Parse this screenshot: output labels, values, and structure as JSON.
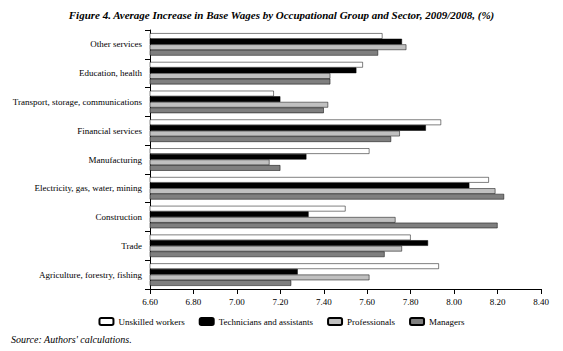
{
  "chart_data": {
    "type": "bar",
    "orientation": "horizontal",
    "title": "Figure 4. Average Increase in Base Wages by Occupational Group and Sector, 2009/2008, (%)",
    "annotations": [
      "Source: Authors' calculations."
    ],
    "categories": [
      "Agriculture, forestry, fishing",
      "Trade",
      "Construction",
      "Electricity, gas, water, mining",
      "Manufacturing",
      "Financial services",
      "Transport, storage, communications",
      "Education, health",
      "Other services"
    ],
    "series": [
      {
        "name": "Unskilled workers",
        "color": "#ffffff",
        "values": [
          7.93,
          7.8,
          7.5,
          8.16,
          7.61,
          7.94,
          7.17,
          7.58,
          7.67
        ]
      },
      {
        "name": "Technicians and assistants",
        "color": "#000000",
        "values": [
          7.28,
          7.88,
          7.33,
          8.07,
          7.32,
          7.87,
          7.2,
          7.55,
          7.76
        ]
      },
      {
        "name": "Professionals",
        "color": "#c0c0c0",
        "values": [
          7.61,
          7.76,
          7.73,
          8.19,
          7.15,
          7.75,
          7.42,
          7.43,
          7.78
        ]
      },
      {
        "name": "Managers",
        "color": "#7f7f7f",
        "values": [
          7.25,
          7.68,
          8.2,
          8.23,
          7.2,
          7.71,
          7.4,
          7.43,
          7.65
        ]
      }
    ],
    "xlim": [
      6.6,
      8.4
    ],
    "xticks": [
      {
        "value": 6.6,
        "label": "6.60"
      },
      {
        "value": 6.8,
        "label": "6.80"
      },
      {
        "value": 7.0,
        "label": "7.00"
      },
      {
        "value": 7.2,
        "label": "7.20"
      },
      {
        "value": 7.4,
        "label": "7.40"
      },
      {
        "value": 7.6,
        "label": "7.60"
      },
      {
        "value": 7.8,
        "label": "7.80"
      },
      {
        "value": 8.0,
        "label": "8.00"
      },
      {
        "value": 8.2,
        "label": "8.20"
      },
      {
        "value": 8.4,
        "label": "8.40"
      }
    ],
    "grid": false,
    "legend": "bottom"
  }
}
